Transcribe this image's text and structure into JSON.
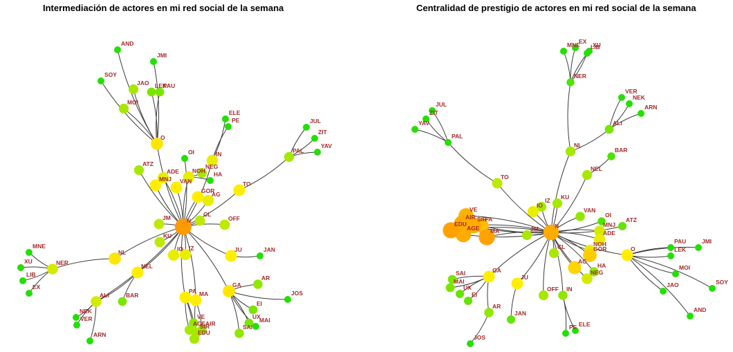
{
  "panels": [
    {
      "id": "left",
      "title": "Intermediación de actores en mi red social de la semana",
      "nodes": [
        {
          "id": "N",
          "score": 1.0
        },
        {
          "id": "O",
          "score": 0.55
        },
        {
          "id": "NL",
          "score": 0.55
        },
        {
          "id": "GA",
          "score": 0.55
        },
        {
          "id": "JU",
          "score": 0.5
        },
        {
          "id": "TO",
          "score": 0.5
        },
        {
          "id": "PA",
          "score": 0.5
        },
        {
          "id": "MA",
          "score": 0.5
        },
        {
          "id": "NEL",
          "score": 0.5
        },
        {
          "id": "VAN",
          "score": 0.5
        },
        {
          "id": "GOR",
          "score": 0.5
        },
        {
          "id": "MNJ",
          "score": 0.5
        },
        {
          "id": "ADE",
          "score": 0.45
        },
        {
          "id": "IO",
          "score": 0.45
        },
        {
          "id": "IZ",
          "score": 0.45
        },
        {
          "id": "NOH",
          "score": 0.45
        },
        {
          "id": "AG",
          "score": 0.45
        },
        {
          "id": "IN",
          "score": 0.45
        },
        {
          "id": "NER",
          "score": 0.4
        },
        {
          "id": "ALI",
          "score": 0.4
        },
        {
          "id": "CL",
          "score": 0.35
        },
        {
          "id": "JM",
          "score": 0.35
        },
        {
          "id": "KU",
          "score": 0.35
        },
        {
          "id": "OFF",
          "score": 0.35
        },
        {
          "id": "ATZ",
          "score": 0.3
        },
        {
          "id": "NEG",
          "score": 0.3
        },
        {
          "id": "MOI",
          "score": 0.3
        },
        {
          "id": "JAO",
          "score": 0.3
        },
        {
          "id": "LEK",
          "score": 0.2
        },
        {
          "id": "PAU",
          "score": 0.2
        },
        {
          "id": "PAL",
          "score": 0.3
        },
        {
          "id": "BAR",
          "score": 0.2
        },
        {
          "id": "VE",
          "score": 0.25
        },
        {
          "id": "AGE",
          "score": 0.3
        },
        {
          "id": "SIR",
          "score": 0.3
        },
        {
          "id": "AIR",
          "score": 0.25
        },
        {
          "id": "EDU",
          "score": 0.3
        },
        {
          "id": "AR",
          "score": 0.25
        },
        {
          "id": "SAI",
          "score": 0.25
        },
        {
          "id": "UX",
          "score": 0.2
        },
        {
          "id": "EI",
          "score": 0.2
        },
        {
          "id": "OI",
          "score": 0
        },
        {
          "id": "HA",
          "score": 0
        },
        {
          "id": "ELE",
          "score": 0
        },
        {
          "id": "PE",
          "score": 0
        },
        {
          "id": "JUL",
          "score": 0
        },
        {
          "id": "ZIT",
          "score": 0
        },
        {
          "id": "YAV",
          "score": 0
        },
        {
          "id": "AND",
          "score": 0
        },
        {
          "id": "JMI",
          "score": 0
        },
        {
          "id": "SOY",
          "score": 0
        },
        {
          "id": "MNE",
          "score": 0
        },
        {
          "id": "XU",
          "score": 0
        },
        {
          "id": "LIB",
          "score": 0
        },
        {
          "id": "EX",
          "score": 0
        },
        {
          "id": "NEK",
          "score": 0
        },
        {
          "id": "VER",
          "score": 0
        },
        {
          "id": "ARN",
          "score": 0
        },
        {
          "id": "JAN",
          "score": 0
        },
        {
          "id": "JOS",
          "score": 0
        },
        {
          "id": "MAI",
          "score": 0
        }
      ],
      "edges": [
        [
          "N",
          "O"
        ],
        [
          "N",
          "JM"
        ],
        [
          "N",
          "KU"
        ],
        [
          "N",
          "CL"
        ],
        [
          "N",
          "OFF"
        ],
        [
          "N",
          "JU"
        ],
        [
          "N",
          "GA"
        ],
        [
          "N",
          "PA"
        ],
        [
          "N",
          "MA"
        ],
        [
          "N",
          "IO"
        ],
        [
          "N",
          "IZ"
        ],
        [
          "N",
          "NL"
        ],
        [
          "N",
          "NEL"
        ],
        [
          "N",
          "VAN"
        ],
        [
          "N",
          "GOR"
        ],
        [
          "N",
          "AG"
        ],
        [
          "N",
          "MNJ"
        ],
        [
          "N",
          "ADE"
        ],
        [
          "N",
          "ATZ"
        ],
        [
          "N",
          "OI"
        ],
        [
          "N",
          "NOH"
        ],
        [
          "N",
          "TO"
        ],
        [
          "N",
          "ALI"
        ],
        [
          "N",
          "IN"
        ],
        [
          "O",
          "SOY"
        ],
        [
          "O",
          "MOI"
        ],
        [
          "O",
          "JAO"
        ],
        [
          "O",
          "LEK"
        ],
        [
          "O",
          "PAU"
        ],
        [
          "O",
          "JMI"
        ],
        [
          "O",
          "AND"
        ],
        [
          "NL",
          "NER"
        ],
        [
          "NER",
          "MNE"
        ],
        [
          "NER",
          "XU"
        ],
        [
          "NER",
          "LIB"
        ],
        [
          "NER",
          "EX"
        ],
        [
          "NEL",
          "ALI"
        ],
        [
          "NEL",
          "BAR"
        ],
        [
          "ALI",
          "NEK"
        ],
        [
          "ALI",
          "VER"
        ],
        [
          "ALI",
          "ARN"
        ],
        [
          "TO",
          "PAL"
        ],
        [
          "PAL",
          "JUL"
        ],
        [
          "PAL",
          "ZIT"
        ],
        [
          "PAL",
          "YAV"
        ],
        [
          "IN",
          "ELE"
        ],
        [
          "IN",
          "PE"
        ],
        [
          "NOH",
          "NEG"
        ],
        [
          "NOH",
          "HA"
        ],
        [
          "JU",
          "JAN"
        ],
        [
          "GA",
          "AR"
        ],
        [
          "GA",
          "JOS"
        ],
        [
          "GA",
          "SAI"
        ],
        [
          "GA",
          "EI"
        ],
        [
          "GA",
          "UX"
        ],
        [
          "GA",
          "MAI"
        ],
        [
          "PA",
          "VE"
        ],
        [
          "PA",
          "AGE"
        ],
        [
          "PA",
          "EDU"
        ],
        [
          "MA",
          "SIR"
        ],
        [
          "MA",
          "AIR"
        ]
      ]
    },
    {
      "id": "right",
      "title": "Centralidad de prestigio de actores en mi red social de la semana",
      "nodes": [
        {
          "id": "N",
          "score": 0.9
        },
        {
          "id": "EDU",
          "score": 0.95
        },
        {
          "id": "AIR",
          "score": 0.9
        },
        {
          "id": "VE",
          "score": 0.85
        },
        {
          "id": "SIR",
          "score": 0.9
        },
        {
          "id": "AGE",
          "score": 0.9
        },
        {
          "id": "PA",
          "score": 0.8
        },
        {
          "id": "MA",
          "score": 0.95
        },
        {
          "id": "GOR",
          "score": 0.7
        },
        {
          "id": "AG",
          "score": 0.65
        },
        {
          "id": "O",
          "score": 0.5
        },
        {
          "id": "GA",
          "score": 0.5
        },
        {
          "id": "JU",
          "score": 0.5
        },
        {
          "id": "ADE",
          "score": 0.45
        },
        {
          "id": "IO",
          "score": 0.45
        },
        {
          "id": "NOH",
          "score": 0.45
        },
        {
          "id": "MNJ",
          "score": 0.4
        },
        {
          "id": "NEG",
          "score": 0.4
        },
        {
          "id": "TO",
          "score": 0.35
        },
        {
          "id": "JM",
          "score": 0.3
        },
        {
          "id": "IZ",
          "score": 0.3
        },
        {
          "id": "KU",
          "score": 0.3
        },
        {
          "id": "CL",
          "score": 0.3
        },
        {
          "id": "NL",
          "score": 0.3
        },
        {
          "id": "NEL",
          "score": 0.3
        },
        {
          "id": "OFF",
          "score": 0.3
        },
        {
          "id": "VAN",
          "score": 0.25
        },
        {
          "id": "HA",
          "score": 0.25
        },
        {
          "id": "AR",
          "score": 0.25
        },
        {
          "id": "IN",
          "score": 0.25
        },
        {
          "id": "ALI",
          "score": 0.2
        },
        {
          "id": "MAI",
          "score": 0.2
        },
        {
          "id": "SAI",
          "score": 0.2
        },
        {
          "id": "UX",
          "score": 0.15
        },
        {
          "id": "EI",
          "score": 0.15
        },
        {
          "id": "ATZ",
          "score": 0.15
        },
        {
          "id": "JAN",
          "score": 0.15
        },
        {
          "id": "OI",
          "score": 0.1
        },
        {
          "id": "BAR",
          "score": 0.1
        },
        {
          "id": "NER",
          "score": 0.1
        },
        {
          "id": "PAL",
          "score": 0
        },
        {
          "id": "JUL",
          "score": 0
        },
        {
          "id": "ZIT",
          "score": 0
        },
        {
          "id": "YAV",
          "score": 0
        },
        {
          "id": "MNE",
          "score": 0
        },
        {
          "id": "EX",
          "score": 0
        },
        {
          "id": "LIB",
          "score": 0
        },
        {
          "id": "XU",
          "score": 0
        },
        {
          "id": "VER",
          "score": 0
        },
        {
          "id": "NEK",
          "score": 0
        },
        {
          "id": "ARN",
          "score": 0
        },
        {
          "id": "PAU",
          "score": 0
        },
        {
          "id": "LEK",
          "score": 0
        },
        {
          "id": "JMI",
          "score": 0
        },
        {
          "id": "MOI",
          "score": 0
        },
        {
          "id": "SOY",
          "score": 0
        },
        {
          "id": "JAO",
          "score": 0
        },
        {
          "id": "AND",
          "score": 0
        },
        {
          "id": "JOS",
          "score": 0
        },
        {
          "id": "PE",
          "score": 0
        },
        {
          "id": "ELE",
          "score": 0
        }
      ],
      "edges": [
        [
          "N",
          "TO"
        ],
        [
          "N",
          "IO"
        ],
        [
          "N",
          "IZ"
        ],
        [
          "N",
          "KU"
        ],
        [
          "N",
          "NL"
        ],
        [
          "N",
          "NEL"
        ],
        [
          "N",
          "VAN"
        ],
        [
          "N",
          "OI"
        ],
        [
          "N",
          "MNJ"
        ],
        [
          "N",
          "ATZ"
        ],
        [
          "N",
          "ADE"
        ],
        [
          "N",
          "O"
        ],
        [
          "N",
          "CL"
        ],
        [
          "N",
          "NOH"
        ],
        [
          "N",
          "GOR"
        ],
        [
          "N",
          "AG"
        ],
        [
          "N",
          "HA"
        ],
        [
          "N",
          "NEG"
        ],
        [
          "N",
          "IN"
        ],
        [
          "N",
          "OFF"
        ],
        [
          "N",
          "JU"
        ],
        [
          "N",
          "GA"
        ],
        [
          "N",
          "JM"
        ],
        [
          "N",
          "MA"
        ],
        [
          "N",
          "PA"
        ],
        [
          "N",
          "SIR"
        ],
        [
          "N",
          "AGE"
        ],
        [
          "N",
          "EDU"
        ],
        [
          "N",
          "AIR"
        ],
        [
          "N",
          "VE"
        ],
        [
          "TO",
          "PAL"
        ],
        [
          "PAL",
          "JUL"
        ],
        [
          "PAL",
          "ZIT"
        ],
        [
          "PAL",
          "YAV"
        ],
        [
          "NL",
          "NER"
        ],
        [
          "NER",
          "MNE"
        ],
        [
          "NER",
          "EX"
        ],
        [
          "NER",
          "LIB"
        ],
        [
          "NER",
          "XU"
        ],
        [
          "NL",
          "ALI"
        ],
        [
          "ALI",
          "VER"
        ],
        [
          "ALI",
          "NEK"
        ],
        [
          "ALI",
          "ARN"
        ],
        [
          "NEL",
          "BAR"
        ],
        [
          "O",
          "PAU"
        ],
        [
          "O",
          "LEK"
        ],
        [
          "O",
          "JMI"
        ],
        [
          "O",
          "MOI"
        ],
        [
          "O",
          "SOY"
        ],
        [
          "O",
          "JAO"
        ],
        [
          "O",
          "AND"
        ],
        [
          "GA",
          "SAI"
        ],
        [
          "GA",
          "MAI"
        ],
        [
          "GA",
          "UX"
        ],
        [
          "GA",
          "EI"
        ],
        [
          "GA",
          "AR"
        ],
        [
          "AR",
          "JOS"
        ],
        [
          "JU",
          "JAN"
        ],
        [
          "IN",
          "PE"
        ],
        [
          "IN",
          "ELE"
        ]
      ]
    }
  ]
}
